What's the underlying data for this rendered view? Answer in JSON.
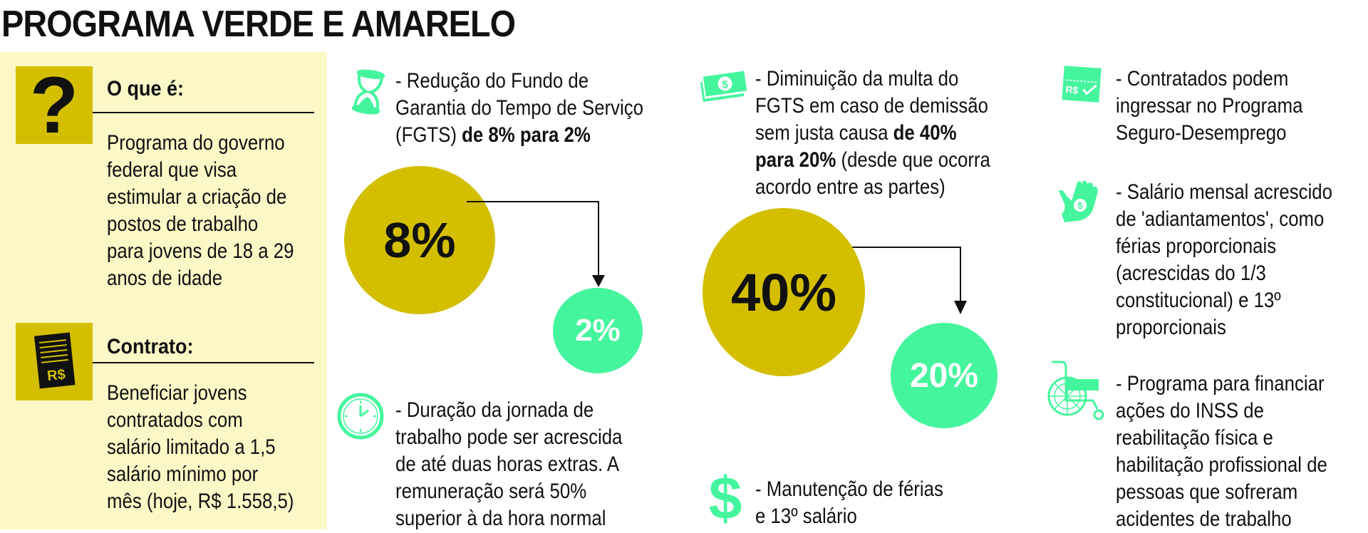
{
  "title": "PROGRAMA VERDE E AMARELO",
  "colors": {
    "olive_yellow": "#d3bf00",
    "green": "#45f59e",
    "panel": "#fcf7c6"
  },
  "left_panel": {
    "what": {
      "icon": "question-mark-icon",
      "icon_glyph": "?",
      "heading": "O que é:",
      "lines": [
        "Programa do governo",
        "federal que visa",
        "estimular a criação de",
        "postos de trabalho",
        "para jovens de 18 a 29",
        "anos de idade"
      ]
    },
    "contract": {
      "icon": "contract-document-icon",
      "icon_text": "R$",
      "heading": "Contrato:",
      "lines": [
        "Beneficiar jovens",
        "contratados com",
        "salário limitado a 1,5",
        "salário mínimo por",
        "mês (hoje, R$ 1.558,5)"
      ]
    }
  },
  "items": [
    {
      "icon": "hourglass-icon",
      "lines": [
        [
          {
            "t": "- Redução do Fundo de"
          }
        ],
        [
          {
            "t": "Garantia do Tempo de Serviço"
          }
        ],
        [
          {
            "t": "(FGTS) "
          },
          {
            "t": "de 8% para 2%",
            "b": true
          }
        ]
      ]
    },
    {
      "icon": "clock-icon",
      "lines": [
        [
          {
            "t": "- Duração da jornada de"
          }
        ],
        [
          {
            "t": "trabalho pode ser acrescida"
          }
        ],
        [
          {
            "t": "de até duas horas extras. A"
          }
        ],
        [
          {
            "t": "remuneração será 50%"
          }
        ],
        [
          {
            "t": "superior à da hora normal"
          }
        ]
      ]
    },
    {
      "icon": "money-bills-icon",
      "lines": [
        [
          {
            "t": "- Diminuição da multa do"
          }
        ],
        [
          {
            "t": "FGTS em caso de demissão"
          }
        ],
        [
          {
            "t": "sem justa causa "
          },
          {
            "t": "de 40%",
            "b": true
          }
        ],
        [
          {
            "t": "para 20%",
            "b": true
          },
          {
            "t": " (desde que ocorra"
          }
        ],
        [
          {
            "t": "acordo entre as partes)"
          }
        ]
      ]
    },
    {
      "icon": "dollar-sign-icon",
      "lines": [
        [
          {
            "t": "- Manutenção de férias"
          }
        ],
        [
          {
            "t": "e 13º salário"
          }
        ]
      ]
    },
    {
      "icon": "payment-ticket-icon",
      "lines": [
        [
          {
            "t": "- Contratados podem"
          }
        ],
        [
          {
            "t": "ingressar no Programa"
          }
        ],
        [
          {
            "t": "Seguro-Desemprego"
          }
        ]
      ]
    },
    {
      "icon": "hand-coin-icon",
      "lines": [
        [
          {
            "t": "- Salário mensal acrescido"
          }
        ],
        [
          {
            "t": "de 'adiantamentos', como"
          }
        ],
        [
          {
            "t": "férias proporcionais"
          }
        ],
        [
          {
            "t": "(acrescidas do 1/3"
          }
        ],
        [
          {
            "t": "constitucional) e 13º"
          }
        ],
        [
          {
            "t": "proporcionais"
          }
        ]
      ]
    },
    {
      "icon": "wheelchair-icon",
      "lines": [
        [
          {
            "t": "- Programa para financiar"
          }
        ],
        [
          {
            "t": "ações do INSS de"
          }
        ],
        [
          {
            "t": "reabilitação física e"
          }
        ],
        [
          {
            "t": "habilitação profissional de"
          }
        ],
        [
          {
            "t": "pessoas que sofreram"
          }
        ],
        [
          {
            "t": "acidentes de trabalho"
          }
        ]
      ]
    }
  ],
  "comparisons": [
    {
      "from": "8%",
      "to": "2%"
    },
    {
      "from": "40%",
      "to": "20%"
    }
  ]
}
